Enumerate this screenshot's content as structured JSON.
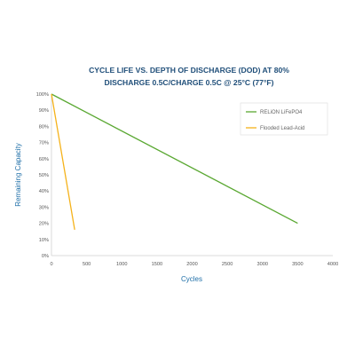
{
  "chart_data": {
    "type": "line",
    "title": "CYCLE LIFE VS. DEPTH OF DISCHARGE (DOD) AT 80%",
    "subtitle": "DISCHARGE 0.5C/CHARGE 0.5C @ 25°C (77°F)",
    "xlabel": "Cycles",
    "ylabel": "Remaining Capacity",
    "xlim": [
      0,
      4000
    ],
    "ylim": [
      0,
      100
    ],
    "x_ticks": [
      0,
      500,
      1000,
      1500,
      2000,
      2500,
      3000,
      3500,
      4000
    ],
    "y_ticks": [
      0,
      10,
      20,
      30,
      40,
      50,
      60,
      70,
      80,
      90,
      100
    ],
    "x_tick_labels": [
      "0",
      "500",
      "1000",
      "1500",
      "2000",
      "2500",
      "3000",
      "3500",
      "4000"
    ],
    "y_tick_labels": [
      "0%",
      "10%",
      "20%",
      "30%",
      "40%",
      "50%",
      "60%",
      "70%",
      "80%",
      "90%",
      "100%"
    ],
    "grid": false,
    "legend_position": "top-right",
    "series": [
      {
        "name": "RELiON LiFePO4",
        "color": "#5aa832",
        "points": [
          [
            0,
            100
          ],
          [
            3500,
            20
          ]
        ]
      },
      {
        "name": "Flooded Lead-Acid",
        "color": "#f5b21a",
        "points": [
          [
            0,
            100
          ],
          [
            330,
            16
          ]
        ]
      }
    ]
  }
}
